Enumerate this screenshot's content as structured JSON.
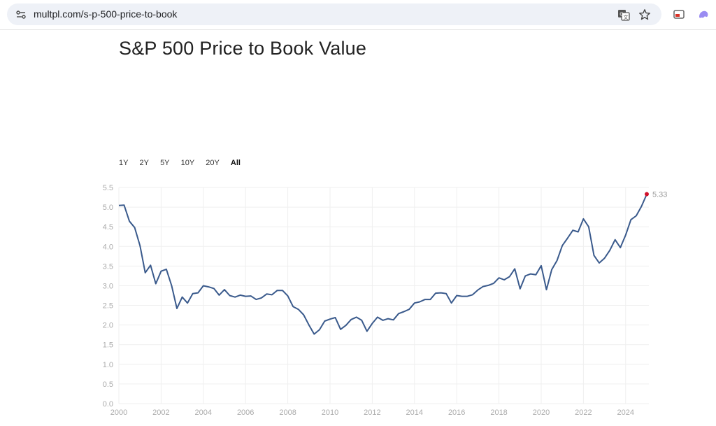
{
  "browser": {
    "url": "multpl.com/s-p-500-price-to-book",
    "icons": [
      "tune-icon",
      "translate-icon",
      "star-icon",
      "cast-icon",
      "extension-icon"
    ]
  },
  "page": {
    "title": "S&P 500 Price to Book Value"
  },
  "range_selector": {
    "options": [
      "1Y",
      "2Y",
      "5Y",
      "10Y",
      "20Y",
      "All"
    ],
    "active": "All"
  },
  "colors": {
    "line": "#3a5a8c",
    "last_point": "#d0112b",
    "grid": "#efefef",
    "tick_text": "#aaaaaa"
  },
  "chart_data": {
    "type": "line",
    "title": "",
    "xlabel": "",
    "ylabel": "",
    "xlim": [
      2000,
      2025.1
    ],
    "ylim": [
      0,
      5.5
    ],
    "grid": true,
    "x_ticks": [
      "2000",
      "2002",
      "2004",
      "2006",
      "2008",
      "2010",
      "2012",
      "2014",
      "2016",
      "2018",
      "2020",
      "2022",
      "2024"
    ],
    "y_ticks": [
      "0.0",
      "0.5",
      "1.0",
      "1.5",
      "2.0",
      "2.5",
      "3.0",
      "3.5",
      "4.0",
      "4.5",
      "5.0",
      "5.5"
    ],
    "last_value_label": "5.33",
    "series": [
      {
        "points": [
          [
            2000.0,
            5.04
          ],
          [
            2000.25,
            5.05
          ],
          [
            2000.5,
            4.64
          ],
          [
            2000.75,
            4.48
          ],
          [
            2001.0,
            4.02
          ],
          [
            2001.25,
            3.33
          ],
          [
            2001.5,
            3.52
          ],
          [
            2001.75,
            3.05
          ],
          [
            2002.0,
            3.37
          ],
          [
            2002.25,
            3.42
          ],
          [
            2002.5,
            3.0
          ],
          [
            2002.75,
            2.42
          ],
          [
            2003.0,
            2.71
          ],
          [
            2003.25,
            2.56
          ],
          [
            2003.5,
            2.8
          ],
          [
            2003.75,
            2.82
          ],
          [
            2004.0,
            3.0
          ],
          [
            2004.25,
            2.97
          ],
          [
            2004.5,
            2.93
          ],
          [
            2004.75,
            2.76
          ],
          [
            2005.0,
            2.9
          ],
          [
            2005.25,
            2.75
          ],
          [
            2005.5,
            2.71
          ],
          [
            2005.75,
            2.76
          ],
          [
            2006.0,
            2.73
          ],
          [
            2006.25,
            2.74
          ],
          [
            2006.5,
            2.65
          ],
          [
            2006.75,
            2.69
          ],
          [
            2007.0,
            2.79
          ],
          [
            2007.25,
            2.77
          ],
          [
            2007.5,
            2.88
          ],
          [
            2007.75,
            2.88
          ],
          [
            2008.0,
            2.74
          ],
          [
            2008.25,
            2.47
          ],
          [
            2008.5,
            2.4
          ],
          [
            2008.75,
            2.26
          ],
          [
            2009.0,
            2.0
          ],
          [
            2009.25,
            1.77
          ],
          [
            2009.5,
            1.88
          ],
          [
            2009.75,
            2.1
          ],
          [
            2010.0,
            2.15
          ],
          [
            2010.25,
            2.19
          ],
          [
            2010.5,
            1.89
          ],
          [
            2010.75,
            1.99
          ],
          [
            2011.0,
            2.14
          ],
          [
            2011.25,
            2.2
          ],
          [
            2011.5,
            2.12
          ],
          [
            2011.75,
            1.84
          ],
          [
            2012.0,
            2.04
          ],
          [
            2012.25,
            2.2
          ],
          [
            2012.5,
            2.12
          ],
          [
            2012.75,
            2.16
          ],
          [
            2013.0,
            2.13
          ],
          [
            2013.25,
            2.29
          ],
          [
            2013.5,
            2.34
          ],
          [
            2013.75,
            2.4
          ],
          [
            2014.0,
            2.56
          ],
          [
            2014.25,
            2.59
          ],
          [
            2014.5,
            2.65
          ],
          [
            2014.75,
            2.65
          ],
          [
            2015.0,
            2.81
          ],
          [
            2015.25,
            2.82
          ],
          [
            2015.5,
            2.8
          ],
          [
            2015.75,
            2.56
          ],
          [
            2016.0,
            2.75
          ],
          [
            2016.25,
            2.73
          ],
          [
            2016.5,
            2.73
          ],
          [
            2016.75,
            2.77
          ],
          [
            2017.0,
            2.89
          ],
          [
            2017.25,
            2.98
          ],
          [
            2017.5,
            3.01
          ],
          [
            2017.75,
            3.06
          ],
          [
            2018.0,
            3.2
          ],
          [
            2018.25,
            3.15
          ],
          [
            2018.5,
            3.23
          ],
          [
            2018.75,
            3.43
          ],
          [
            2019.0,
            2.92
          ],
          [
            2019.25,
            3.25
          ],
          [
            2019.5,
            3.3
          ],
          [
            2019.75,
            3.28
          ],
          [
            2020.0,
            3.51
          ],
          [
            2020.25,
            2.9
          ],
          [
            2020.5,
            3.41
          ],
          [
            2020.75,
            3.64
          ],
          [
            2021.0,
            4.02
          ],
          [
            2021.25,
            4.21
          ],
          [
            2021.5,
            4.41
          ],
          [
            2021.75,
            4.37
          ],
          [
            2022.0,
            4.7
          ],
          [
            2022.25,
            4.5
          ],
          [
            2022.5,
            3.77
          ],
          [
            2022.75,
            3.58
          ],
          [
            2023.0,
            3.7
          ],
          [
            2023.25,
            3.9
          ],
          [
            2023.5,
            4.17
          ],
          [
            2023.75,
            3.97
          ],
          [
            2024.0,
            4.29
          ],
          [
            2024.25,
            4.68
          ],
          [
            2024.5,
            4.78
          ],
          [
            2024.75,
            5.02
          ],
          [
            2025.0,
            5.33
          ]
        ]
      }
    ]
  }
}
